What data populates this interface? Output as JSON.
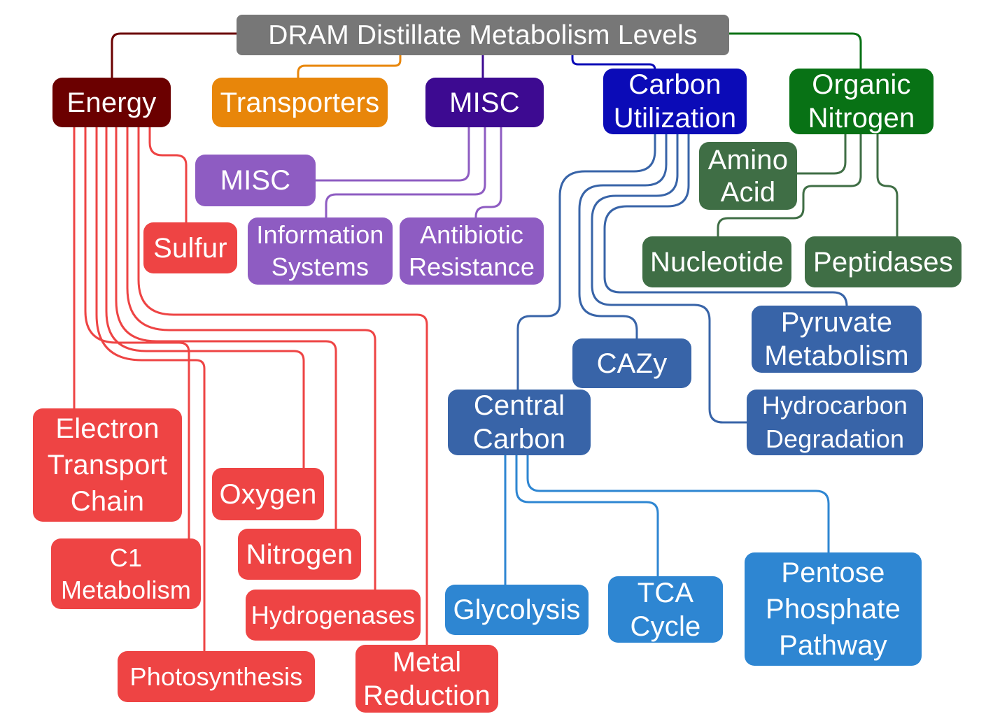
{
  "diagram": {
    "title": "DRAM Distillate Metabolism Levels",
    "colors": {
      "title": "#777777",
      "energy": "#6B0000",
      "energy_children": "#EE4444",
      "transporters": "#E8860A",
      "misc": "#3D0A91",
      "misc_children": "#8E5CC2",
      "carbon_utilization": "#0B0BB7",
      "carbon_children": "#3864A8",
      "central_carbon_children": "#2E86D2",
      "organic_nitrogen": "#087215",
      "organic_nitrogen_children": "#3F6E45"
    },
    "nodes": {
      "energy": "Energy",
      "transporters": "Transporters",
      "misc": "MISC",
      "carbon_utilization": "Carbon\nUtilization",
      "organic_nitrogen": "Organic\nNitrogen",
      "misc_sub": "MISC",
      "information_systems": "Information\nSystems",
      "antibiotic_resistance": "Antibiotic\nResistance",
      "sulfur": "Sulfur",
      "electron_transport_chain": "Electron\nTransport\nChain",
      "oxygen": "Oxygen",
      "c1_metabolism": "C1\nMetabolism",
      "nitrogen": "Nitrogen",
      "hydrogenases": "Hydrogenases",
      "photosynthesis": "Photosynthesis",
      "metal_reduction": "Metal\nReduction",
      "amino_acid": "Amino\nAcid",
      "nucleotide": "Nucleotide",
      "peptidases": "Peptidases",
      "pyruvate_metabolism": "Pyruvate\nMetabolism",
      "cazy": "CAZy",
      "hydrocarbon_degradation": "Hydrocarbon\nDegradation",
      "central_carbon": "Central\nCarbon",
      "glycolysis": "Glycolysis",
      "tca_cycle": "TCA\nCycle",
      "pentose_phosphate_pathway": "Pentose\nPhosphate\nPathway"
    }
  }
}
